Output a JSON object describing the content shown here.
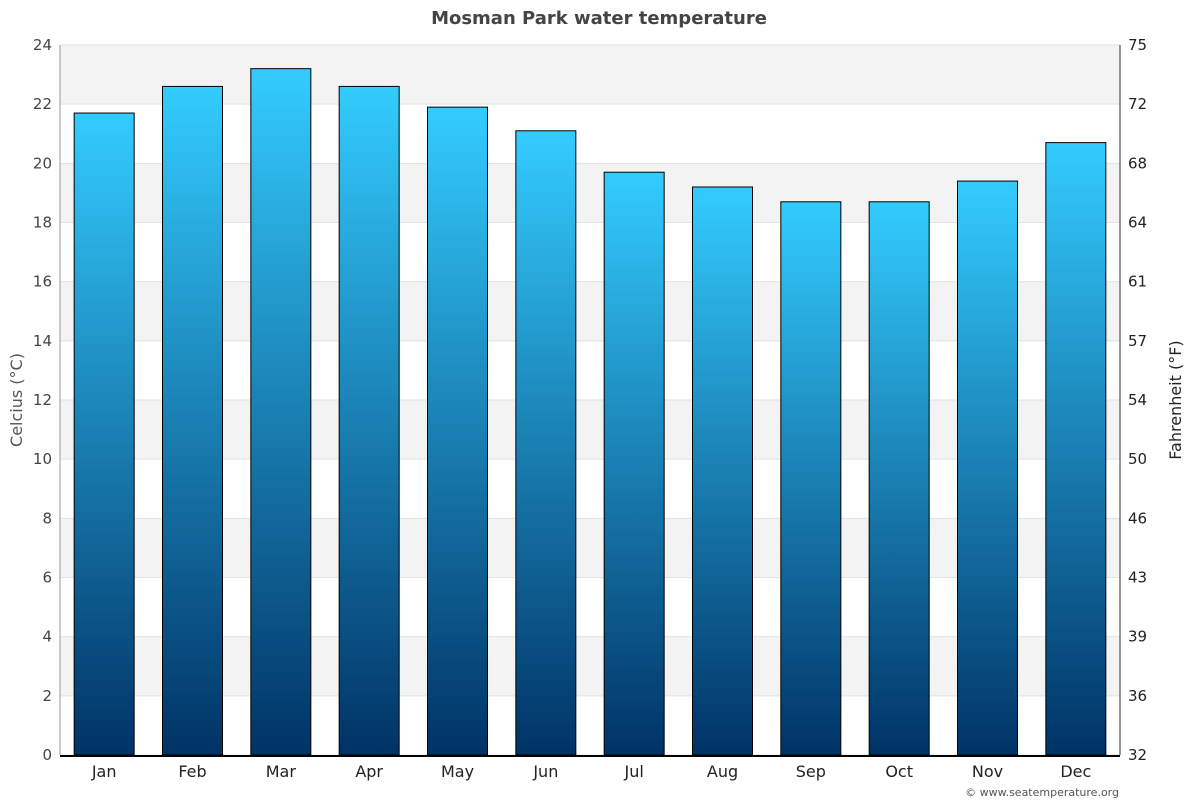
{
  "chart_data": {
    "type": "bar",
    "title": "Mosman Park water temperature",
    "ylabel": "Celcius (°C)",
    "y2label": "Fahrenheit (°F)",
    "categories": [
      "Jan",
      "Feb",
      "Mar",
      "Apr",
      "May",
      "Jun",
      "Jul",
      "Aug",
      "Sep",
      "Oct",
      "Nov",
      "Dec"
    ],
    "values": [
      21.7,
      22.6,
      23.2,
      22.6,
      21.9,
      21.1,
      19.7,
      19.2,
      18.7,
      18.7,
      19.4,
      20.7
    ],
    "ylim": [
      0,
      24
    ],
    "yticks": [
      "0",
      "2",
      "4",
      "6",
      "8",
      "10",
      "12",
      "14",
      "16",
      "18",
      "20",
      "22",
      "24"
    ],
    "y2ticks": [
      "32",
      "36",
      "39",
      "43",
      "46",
      "50",
      "54",
      "57",
      "61",
      "64",
      "68",
      "72",
      "75"
    ],
    "grid": true,
    "bar_color_top": "#33ccff",
    "bar_color_bottom": "#003366",
    "credit": "© www.seatemperature.org"
  }
}
